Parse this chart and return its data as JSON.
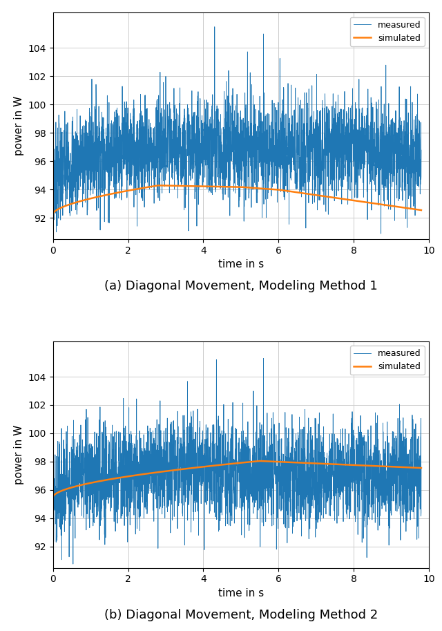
{
  "title_a": "(a) Diagonal Movement, Modeling Method 1",
  "title_b": "(b) Diagonal Movement, Modeling Method 2",
  "xlabel": "time in s",
  "ylabel": "power in W",
  "xlim": [
    0,
    10
  ],
  "ylim_a": [
    90.5,
    106.5
  ],
  "ylim_b": [
    90.5,
    106.5
  ],
  "yticks_a": [
    92,
    94,
    96,
    98,
    100,
    102,
    104
  ],
  "yticks_b": [
    92,
    94,
    96,
    98,
    100,
    102,
    104
  ],
  "xticks": [
    0,
    2,
    4,
    6,
    8,
    10
  ],
  "measured_color": "#1f77b4",
  "simulated_color": "#ff7f0e",
  "measured_lw": 0.6,
  "simulated_lw": 1.8,
  "legend_measured": "measured",
  "legend_simulated": "simulated",
  "figsize": [
    6.4,
    9.13
  ],
  "dpi": 100,
  "caption_fontsize": 13,
  "label_fontsize": 11,
  "tick_fontsize": 10
}
